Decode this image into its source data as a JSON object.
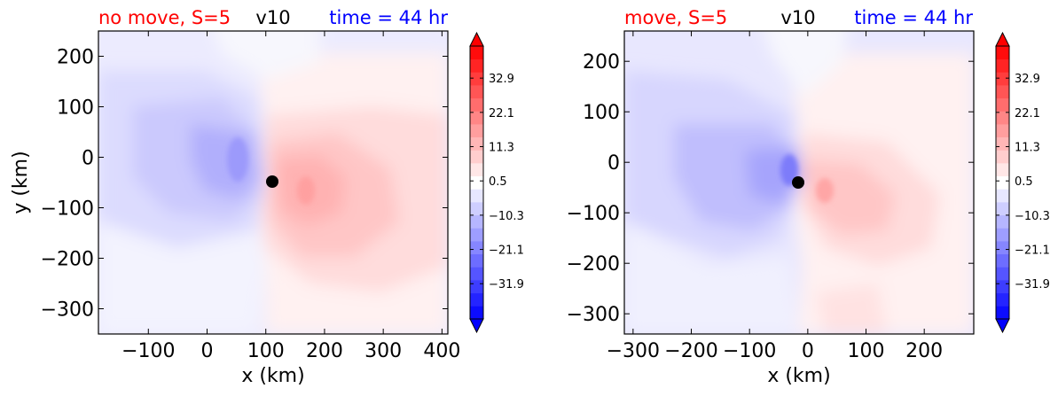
{
  "chart_data": [
    {
      "type": "contour",
      "title_left": "no move, S=5",
      "title_center": "v10",
      "title_right": "time = 44 hr",
      "title_left_color": "#ff0000",
      "title_center_color": "#000000",
      "title_right_color": "#0000ff",
      "xlabel": "x (km)",
      "ylabel": "y (km)",
      "xlim": [
        -185,
        410
      ],
      "ylim": [
        -350,
        250
      ],
      "xticks": [
        -100,
        0,
        100,
        200,
        300,
        400
      ],
      "yticks": [
        200,
        100,
        0,
        -100,
        -200,
        -300
      ],
      "xtick_labels": [
        "−100",
        "0",
        "100",
        "200",
        "300",
        "400"
      ],
      "ytick_labels": [
        "200",
        "100",
        "0",
        "−100",
        "−200",
        "−300"
      ],
      "center": [
        108,
        -48
      ],
      "colormap": "bwr",
      "colorbar": {
        "vmin": -43,
        "vmax": 43,
        "levels": 21,
        "extend": "both",
        "tick_values": [
          32.9,
          22.1,
          11.3,
          0.5,
          -10.3,
          -21.1,
          -31.9
        ],
        "tick_labels": [
          "32.9",
          "22.1",
          "11.3",
          "0.5",
          "−10.3",
          "−21.1",
          "−31.9"
        ]
      }
    },
    {
      "type": "contour",
      "title_left": "move, S=5",
      "title_center": "v10",
      "title_right": "time = 44 hr",
      "title_left_color": "#ff0000",
      "title_center_color": "#000000",
      "title_right_color": "#0000ff",
      "xlabel": "x (km)",
      "ylabel": "",
      "xlim": [
        -315,
        285
      ],
      "ylim": [
        -340,
        260
      ],
      "xticks": [
        -300,
        -200,
        -100,
        0,
        100,
        200
      ],
      "yticks": [
        200,
        100,
        0,
        -100,
        -200,
        -300
      ],
      "xtick_labels": [
        "−300",
        "−200",
        "−100",
        "0",
        "100",
        "200"
      ],
      "ytick_labels": [
        "200",
        "100",
        "0",
        "−100",
        "−200",
        "−300"
      ],
      "center": [
        -15,
        -38
      ],
      "colormap": "bwr",
      "colorbar": {
        "vmin": -43,
        "vmax": 43,
        "levels": 21,
        "extend": "both",
        "tick_values": [
          32.9,
          22.1,
          11.3,
          0.5,
          -10.3,
          -21.1,
          -31.9
        ],
        "tick_labels": [
          "32.9",
          "22.1",
          "11.3",
          "0.5",
          "−10.3",
          "−21.1",
          "−31.9"
        ]
      }
    }
  ]
}
